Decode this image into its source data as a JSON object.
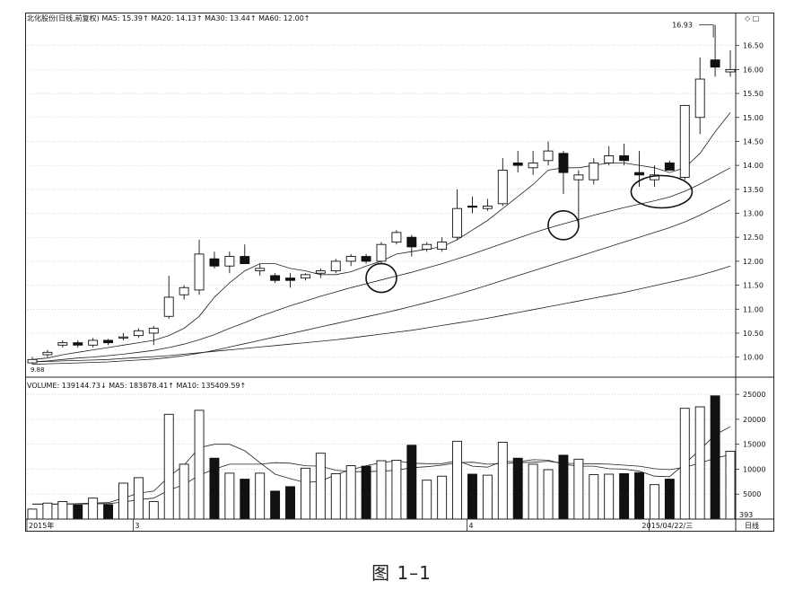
{
  "price_panel": {
    "legend": {
      "name": "北化股份(日线,前复权)",
      "ma5": "MA5: 15.39↑",
      "ma20": "MA20: 14.13↑",
      "ma30": "MA30: 13.44↑",
      "ma60": "MA60: 12.00↑"
    },
    "peak_label": "16.93",
    "start_label": "9.88",
    "top_right_icons": "◇ □"
  },
  "volume_panel": {
    "legend": {
      "volume": "VOLUME: 139144.73↓",
      "ma5": "MA5: 183878.41↑",
      "ma10": "MA10: 135409.59↑"
    },
    "corner_value": "393"
  },
  "date_axis": {
    "labels": [
      {
        "text": "2015年",
        "index": 0
      },
      {
        "text": "3",
        "index": 7
      },
      {
        "text": "4",
        "index": 29
      },
      {
        "text": "2015/04/22/三",
        "index": 41
      }
    ],
    "unit": "日线"
  },
  "caption": "图 1–1",
  "chart_data": {
    "type": "candlestick",
    "price_axis": {
      "ticks": [
        10.0,
        10.5,
        11.0,
        11.5,
        12.0,
        12.5,
        13.0,
        13.5,
        14.0,
        14.5,
        15.0,
        15.5,
        16.0,
        16.5
      ],
      "tick_labels": [
        "10.00",
        "10.50",
        "11.00",
        "11.50",
        "12.00",
        "12.50",
        "13.00",
        "13.50",
        "14.00",
        "14.50",
        "15.00",
        "15.50",
        "16.00",
        "16.50"
      ],
      "ylim": [
        9.6,
        17.0
      ]
    },
    "volume_axis": {
      "ticks": [
        5000,
        10000,
        15000,
        20000,
        25000
      ],
      "tick_labels": [
        "5000",
        "10000",
        "15000",
        "20000",
        "25000"
      ],
      "ylim": [
        0,
        27000
      ]
    },
    "candles": [
      {
        "o": 9.88,
        "h": 10.0,
        "l": 9.85,
        "c": 9.95,
        "v": 2000,
        "up": true
      },
      {
        "o": 10.05,
        "h": 10.15,
        "l": 10.0,
        "c": 10.1,
        "v": 3200,
        "up": true
      },
      {
        "o": 10.25,
        "h": 10.35,
        "l": 10.2,
        "c": 10.3,
        "v": 3500,
        "up": true
      },
      {
        "o": 10.3,
        "h": 10.35,
        "l": 10.2,
        "c": 10.25,
        "v": 2800,
        "up": false
      },
      {
        "o": 10.25,
        "h": 10.4,
        "l": 10.2,
        "c": 10.35,
        "v": 4200,
        "up": true
      },
      {
        "o": 10.35,
        "h": 10.38,
        "l": 10.25,
        "c": 10.3,
        "v": 2900,
        "up": false
      },
      {
        "o": 10.4,
        "h": 10.5,
        "l": 10.35,
        "c": 10.42,
        "v": 7200,
        "up": true
      },
      {
        "o": 10.45,
        "h": 10.6,
        "l": 10.4,
        "c": 10.55,
        "v": 8300,
        "up": true
      },
      {
        "o": 10.5,
        "h": 10.65,
        "l": 10.25,
        "c": 10.6,
        "v": 3500,
        "up": true
      },
      {
        "o": 10.85,
        "h": 11.7,
        "l": 10.8,
        "c": 11.25,
        "v": 21000,
        "up": true
      },
      {
        "o": 11.3,
        "h": 11.5,
        "l": 11.2,
        "c": 11.45,
        "v": 11000,
        "up": true
      },
      {
        "o": 11.4,
        "h": 12.45,
        "l": 11.3,
        "c": 12.15,
        "v": 21800,
        "up": true
      },
      {
        "o": 12.05,
        "h": 12.2,
        "l": 11.85,
        "c": 11.9,
        "v": 12200,
        "up": false
      },
      {
        "o": 11.9,
        "h": 12.2,
        "l": 11.75,
        "c": 12.1,
        "v": 9200,
        "up": true
      },
      {
        "o": 12.1,
        "h": 12.35,
        "l": 11.95,
        "c": 11.95,
        "v": 8000,
        "up": false
      },
      {
        "o": 11.85,
        "h": 11.95,
        "l": 11.7,
        "c": 11.8,
        "v": 9200,
        "up": true
      },
      {
        "o": 11.7,
        "h": 11.75,
        "l": 11.55,
        "c": 11.6,
        "v": 5600,
        "up": false
      },
      {
        "o": 11.65,
        "h": 11.75,
        "l": 11.45,
        "c": 11.6,
        "v": 6500,
        "up": false
      },
      {
        "o": 11.65,
        "h": 11.75,
        "l": 11.6,
        "c": 11.72,
        "v": 10200,
        "up": true
      },
      {
        "o": 11.75,
        "h": 11.85,
        "l": 11.65,
        "c": 11.8,
        "v": 13200,
        "up": true
      },
      {
        "o": 11.8,
        "h": 12.05,
        "l": 11.75,
        "c": 12.0,
        "v": 9100,
        "up": true
      },
      {
        "o": 12.0,
        "h": 12.15,
        "l": 11.9,
        "c": 12.1,
        "v": 10700,
        "up": true
      },
      {
        "o": 12.1,
        "h": 12.15,
        "l": 11.95,
        "c": 12.0,
        "v": 10600,
        "up": false
      },
      {
        "o": 12.0,
        "h": 12.4,
        "l": 11.95,
        "c": 12.35,
        "v": 11700,
        "up": true
      },
      {
        "o": 12.4,
        "h": 12.65,
        "l": 12.35,
        "c": 12.6,
        "v": 11800,
        "up": true
      },
      {
        "o": 12.5,
        "h": 12.55,
        "l": 12.1,
        "c": 12.3,
        "v": 14800,
        "up": false
      },
      {
        "o": 12.25,
        "h": 12.4,
        "l": 12.2,
        "c": 12.35,
        "v": 7800,
        "up": true
      },
      {
        "o": 12.25,
        "h": 12.5,
        "l": 12.2,
        "c": 12.4,
        "v": 8600,
        "up": true
      },
      {
        "o": 12.5,
        "h": 13.5,
        "l": 12.45,
        "c": 13.1,
        "v": 15600,
        "up": true
      },
      {
        "o": 13.15,
        "h": 13.35,
        "l": 13.0,
        "c": 13.15,
        "v": 9000,
        "up": false
      },
      {
        "o": 13.1,
        "h": 13.3,
        "l": 13.05,
        "c": 13.15,
        "v": 8800,
        "up": true
      },
      {
        "o": 13.2,
        "h": 14.15,
        "l": 13.15,
        "c": 13.9,
        "v": 15400,
        "up": true
      },
      {
        "o": 14.05,
        "h": 14.3,
        "l": 13.85,
        "c": 14.0,
        "v": 12200,
        "up": false
      },
      {
        "o": 13.95,
        "h": 14.3,
        "l": 13.8,
        "c": 14.05,
        "v": 11000,
        "up": true
      },
      {
        "o": 14.1,
        "h": 14.5,
        "l": 14.0,
        "c": 14.3,
        "v": 9900,
        "up": true
      },
      {
        "o": 14.25,
        "h": 14.3,
        "l": 13.4,
        "c": 13.85,
        "v": 12800,
        "up": false
      },
      {
        "o": 13.8,
        "h": 13.9,
        "l": 12.8,
        "c": 13.7,
        "v": 12000,
        "up": true
      },
      {
        "o": 13.7,
        "h": 14.15,
        "l": 13.6,
        "c": 14.05,
        "v": 8900,
        "up": true
      },
      {
        "o": 14.05,
        "h": 14.4,
        "l": 14.0,
        "c": 14.2,
        "v": 9000,
        "up": true
      },
      {
        "o": 14.2,
        "h": 14.45,
        "l": 14.0,
        "c": 14.1,
        "v": 9100,
        "up": false
      },
      {
        "o": 13.85,
        "h": 14.3,
        "l": 13.55,
        "c": 13.8,
        "v": 9300,
        "up": false
      },
      {
        "o": 13.7,
        "h": 14.0,
        "l": 13.55,
        "c": 13.8,
        "v": 6900,
        "up": true
      },
      {
        "o": 14.05,
        "h": 14.1,
        "l": 13.9,
        "c": 13.9,
        "v": 8000,
        "up": false
      },
      {
        "o": 13.75,
        "h": 15.25,
        "l": 13.7,
        "c": 15.25,
        "v": 22200,
        "up": true
      },
      {
        "o": 15.0,
        "h": 16.25,
        "l": 14.65,
        "c": 15.8,
        "v": 22500,
        "up": true
      },
      {
        "o": 16.2,
        "h": 16.93,
        "l": 15.85,
        "c": 16.05,
        "v": 24700,
        "up": false
      },
      {
        "o": 16.0,
        "h": 16.4,
        "l": 15.85,
        "c": 15.95,
        "v": 13600,
        "up": true
      }
    ],
    "ma_lines": [
      {
        "name": "MA5",
        "values": [
          9.95,
          9.98,
          10.05,
          10.1,
          10.15,
          10.2,
          10.25,
          10.3,
          10.35,
          10.45,
          10.6,
          10.85,
          11.25,
          11.55,
          11.8,
          11.95,
          11.95,
          11.85,
          11.8,
          11.72,
          11.72,
          11.78,
          11.9,
          12.0,
          12.15,
          12.2,
          12.25,
          12.3,
          12.45,
          12.65,
          12.85,
          13.1,
          13.35,
          13.6,
          13.9,
          13.95,
          13.95,
          14.0,
          14.05,
          14.05,
          14.0,
          13.95,
          13.85,
          13.95,
          14.25,
          14.7,
          15.1
        ]
      },
      {
        "name": "MA10",
        "values": [
          9.9,
          9.92,
          9.95,
          9.98,
          10.0,
          10.03,
          10.06,
          10.1,
          10.14,
          10.2,
          10.27,
          10.36,
          10.47,
          10.6,
          10.72,
          10.85,
          10.96,
          11.07,
          11.17,
          11.27,
          11.36,
          11.45,
          11.53,
          11.61,
          11.69,
          11.77,
          11.86,
          11.95,
          12.05,
          12.15,
          12.26,
          12.37,
          12.48,
          12.59,
          12.69,
          12.78,
          12.87,
          12.96,
          13.04,
          13.12,
          13.19,
          13.26,
          13.34,
          13.46,
          13.61,
          13.78,
          13.95
        ]
      },
      {
        "name": "MA20",
        "values": [
          9.85,
          9.86,
          9.87,
          9.88,
          9.89,
          9.9,
          9.92,
          9.94,
          9.96,
          9.99,
          10.03,
          10.08,
          10.14,
          10.21,
          10.28,
          10.35,
          10.42,
          10.49,
          10.56,
          10.63,
          10.7,
          10.77,
          10.84,
          10.91,
          10.98,
          11.06,
          11.14,
          11.22,
          11.31,
          11.4,
          11.5,
          11.6,
          11.7,
          11.8,
          11.9,
          12.0,
          12.1,
          12.2,
          12.3,
          12.4,
          12.5,
          12.6,
          12.7,
          12.82,
          12.96,
          13.12,
          13.28
        ]
      },
      {
        "name": "MA60",
        "values": [
          9.9,
          9.91,
          9.92,
          9.93,
          9.94,
          9.95,
          9.97,
          9.99,
          10.01,
          10.03,
          10.06,
          10.09,
          10.12,
          10.15,
          10.18,
          10.21,
          10.24,
          10.27,
          10.3,
          10.33,
          10.36,
          10.4,
          10.44,
          10.48,
          10.52,
          10.56,
          10.61,
          10.66,
          10.71,
          10.76,
          10.81,
          10.87,
          10.93,
          10.99,
          11.05,
          11.11,
          11.17,
          11.23,
          11.29,
          11.35,
          11.42,
          11.49,
          11.56,
          11.63,
          11.71,
          11.8,
          11.9
        ]
      }
    ],
    "volume_ma_lines": [
      {
        "name": "MA5",
        "values": [
          3000,
          3000,
          3000,
          3100,
          3200,
          3300,
          4200,
          5200,
          5600,
          8500,
          10800,
          14300,
          15000,
          15000,
          13700,
          11300,
          9000,
          8100,
          7300,
          7600,
          8900,
          9900,
          10700,
          11300,
          11700,
          11200,
          11100,
          11100,
          11700,
          10600,
          10400,
          11600,
          11500,
          11900,
          11800,
          11000,
          10600,
          10600,
          10100,
          10000,
          9600,
          8600,
          8500,
          11100,
          13900,
          16900,
          18500
        ]
      },
      {
        "name": "MA10",
        "values": [
          3000,
          3000,
          3000,
          3000,
          3050,
          3100,
          3400,
          3900,
          4200,
          5800,
          6900,
          8800,
          10000,
          11000,
          11000,
          11000,
          11300,
          11200,
          10700,
          10600,
          9800,
          9500,
          9500,
          9600,
          9800,
          10300,
          10500,
          10800,
          11300,
          11400,
          11000,
          11100,
          11300,
          11400,
          11600,
          11200,
          11100,
          11100,
          11000,
          10800,
          10600,
          10100,
          9900,
          10400,
          11200,
          12200,
          12900
        ]
      }
    ],
    "annotations": [
      {
        "shape": "ellipse",
        "index": 23,
        "price": 11.65
      },
      {
        "shape": "ellipse",
        "index": 35,
        "price": 12.75
      },
      {
        "shape": "ellipse",
        "index": 41,
        "price": 13.45
      }
    ]
  }
}
